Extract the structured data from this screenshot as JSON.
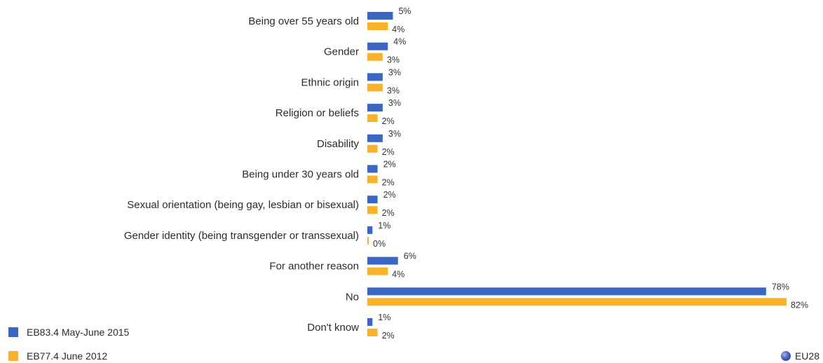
{
  "colors": {
    "series1": "#3a66c4",
    "series2": "#f9b32a"
  },
  "legend": {
    "series1_label": "EB83.4 May-June 2015",
    "series2_label": "EB77.4 June 2012"
  },
  "badge": {
    "label": "EU28",
    "icon": "eu-globe-icon"
  },
  "chart_data": {
    "type": "bar",
    "orientation": "horizontal",
    "categories": [
      "Being over 55 years old",
      "Gender",
      "Ethnic origin",
      "Religion or beliefs",
      "Disability",
      "Being under 30 years old",
      "Sexual orientation (being gay, lesbian or bisexual)",
      "Gender identity (being transgender or transsexual)",
      "For another reason",
      "No",
      "Don't know"
    ],
    "series": [
      {
        "name": "EB83.4 May-June 2015",
        "values": [
          5,
          4,
          3,
          3,
          3,
          2,
          2,
          1,
          6,
          78,
          1
        ],
        "labels": [
          "5%",
          "4%",
          "3%",
          "3%",
          "3%",
          "2%",
          "2%",
          "1%",
          "6%",
          "78%",
          "1%"
        ]
      },
      {
        "name": "EB77.4 June 2012",
        "values": [
          4,
          3,
          3,
          2,
          2,
          2,
          2,
          0,
          4,
          82,
          2
        ],
        "labels": [
          "4%",
          "3%",
          "3%",
          "2%",
          "2%",
          "2%",
          "2%",
          "0%",
          "4%",
          "82%",
          "2%"
        ]
      }
    ],
    "unit": "%",
    "xlim": [
      0,
      82
    ],
    "grid": false,
    "legend_position": "bottom-left"
  }
}
